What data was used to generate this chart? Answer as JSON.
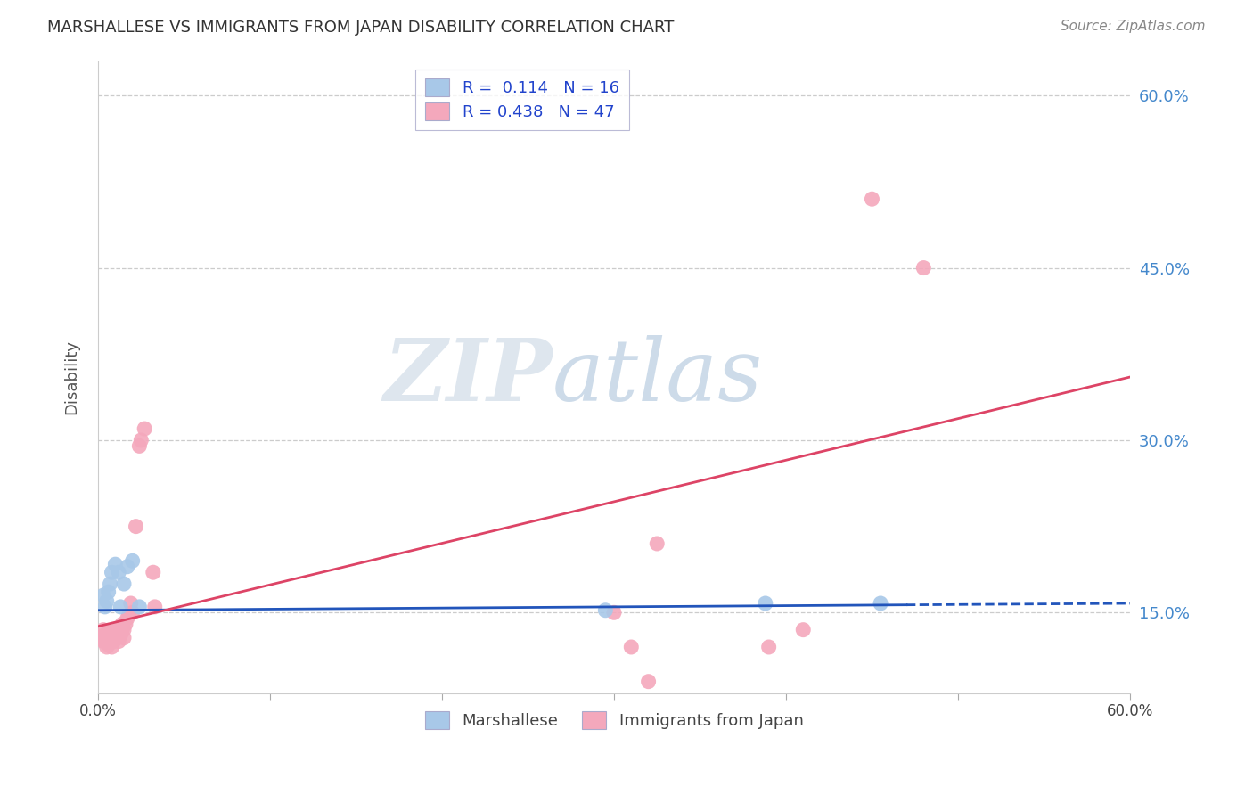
{
  "title": "MARSHALLESE VS IMMIGRANTS FROM JAPAN DISABILITY CORRELATION CHART",
  "source": "Source: ZipAtlas.com",
  "ylabel": "Disability",
  "xlim": [
    0,
    0.6
  ],
  "ylim": [
    0.08,
    0.63
  ],
  "y_ticks": [
    0.15,
    0.3,
    0.45,
    0.6
  ],
  "y_tick_labels": [
    "15.0%",
    "30.0%",
    "45.0%",
    "60.0%"
  ],
  "blue_R": 0.114,
  "blue_N": 16,
  "pink_R": 0.438,
  "pink_N": 47,
  "blue_color": "#a8c8e8",
  "pink_color": "#f4a8bc",
  "blue_line_color": "#2255bb",
  "pink_line_color": "#dd4466",
  "watermark_zip": "ZIP",
  "watermark_atlas": "atlas",
  "blue_line_solid_end": 0.47,
  "blue_line_y_start": 0.152,
  "blue_line_y_end": 0.158,
  "pink_line_y_start": 0.138,
  "pink_line_y_end": 0.355,
  "blue_scatter_x": [
    0.003,
    0.004,
    0.005,
    0.006,
    0.007,
    0.008,
    0.01,
    0.012,
    0.013,
    0.015,
    0.017,
    0.02,
    0.024,
    0.295,
    0.388,
    0.455
  ],
  "blue_scatter_y": [
    0.165,
    0.155,
    0.16,
    0.168,
    0.175,
    0.185,
    0.192,
    0.185,
    0.155,
    0.175,
    0.19,
    0.195,
    0.155,
    0.152,
    0.158,
    0.158
  ],
  "pink_scatter_x": [
    0.003,
    0.003,
    0.003,
    0.004,
    0.004,
    0.005,
    0.005,
    0.005,
    0.006,
    0.006,
    0.006,
    0.007,
    0.007,
    0.008,
    0.008,
    0.009,
    0.009,
    0.01,
    0.01,
    0.011,
    0.011,
    0.012,
    0.012,
    0.013,
    0.014,
    0.014,
    0.015,
    0.015,
    0.016,
    0.017,
    0.018,
    0.019,
    0.02,
    0.022,
    0.024,
    0.025,
    0.027,
    0.032,
    0.033,
    0.3,
    0.31,
    0.32,
    0.325,
    0.39,
    0.41,
    0.45,
    0.48
  ],
  "pink_scatter_y": [
    0.125,
    0.13,
    0.135,
    0.125,
    0.128,
    0.12,
    0.125,
    0.13,
    0.122,
    0.128,
    0.133,
    0.125,
    0.13,
    0.12,
    0.128,
    0.125,
    0.132,
    0.128,
    0.135,
    0.128,
    0.135,
    0.125,
    0.132,
    0.13,
    0.135,
    0.14,
    0.128,
    0.135,
    0.14,
    0.145,
    0.148,
    0.158,
    0.15,
    0.225,
    0.295,
    0.3,
    0.31,
    0.185,
    0.155,
    0.15,
    0.12,
    0.09,
    0.21,
    0.12,
    0.135,
    0.51,
    0.45
  ]
}
